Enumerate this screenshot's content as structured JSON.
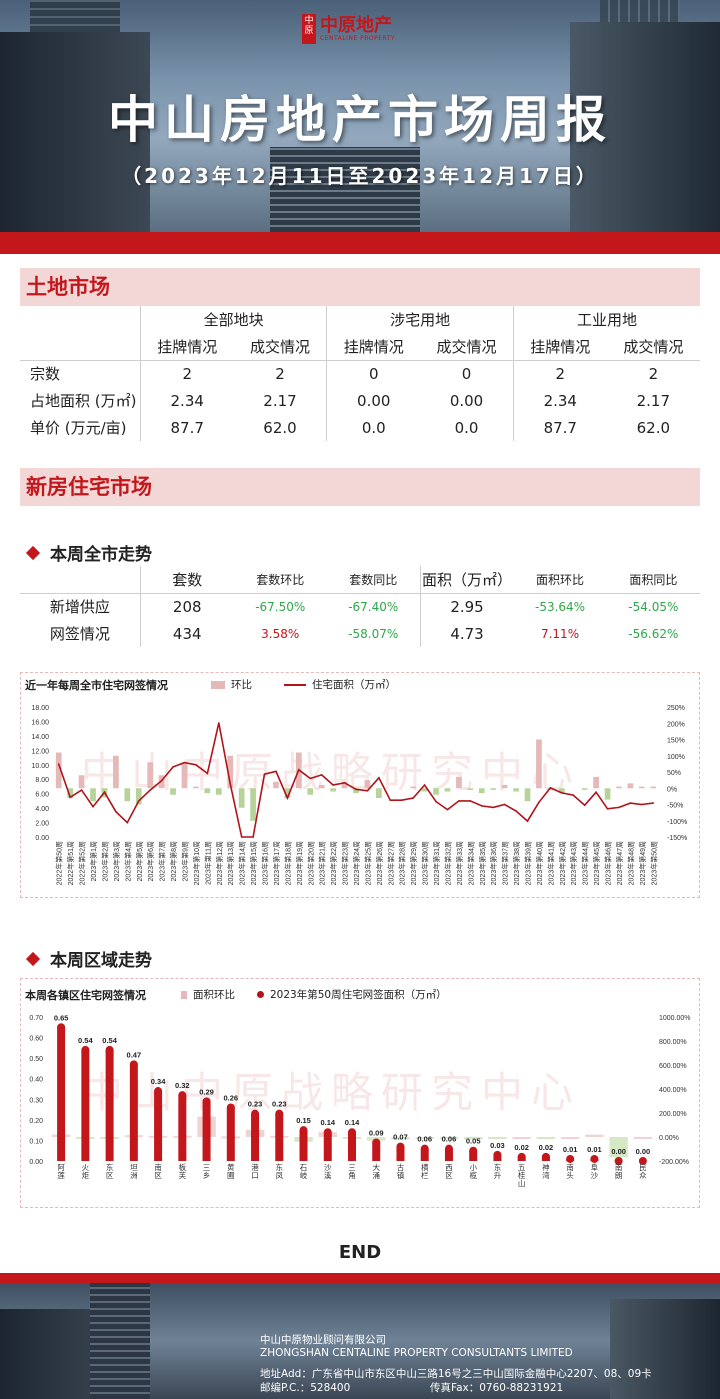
{
  "header": {
    "logo_mark": "中原",
    "logo_text": "中原地产",
    "logo_en": "CENTALINE PROPERTY",
    "title": "中山房地产市场周报",
    "date_range": "（2023年12月11日至2023年12月17日）"
  },
  "land": {
    "section_title": "土地市场",
    "groups": [
      "全部地块",
      "涉宅用地",
      "工业用地"
    ],
    "subheads": [
      "挂牌情况",
      "成交情况",
      "挂牌情况",
      "成交情况",
      "挂牌情况",
      "成交情况"
    ],
    "rows": [
      {
        "label": "宗数",
        "values": [
          "2",
          "2",
          "0",
          "0",
          "2",
          "2"
        ]
      },
      {
        "label": "占地面积 (万㎡)",
        "values": [
          "2.34",
          "2.17",
          "0.00",
          "0.00",
          "2.34",
          "2.17"
        ]
      },
      {
        "label": "单价 (万元/亩)",
        "values": [
          "87.7",
          "62.0",
          "0.0",
          "0.0",
          "87.7",
          "62.0"
        ]
      }
    ]
  },
  "newhouse": {
    "section_title": "新房住宅市场",
    "sub1": "本周全市走势",
    "headers": [
      "套数",
      "套数环比",
      "套数同比",
      "面积（万㎡）",
      "面积环比",
      "面积同比"
    ],
    "rows": [
      {
        "label": "新增供应",
        "values": [
          "208",
          "-67.50%",
          "-67.40%",
          "2.95",
          "-53.64%",
          "-54.05%"
        ]
      },
      {
        "label": "网签情况",
        "values": [
          "434",
          "3.58%",
          "-58.07%",
          "4.73",
          "7.11%",
          "-56.62%"
        ]
      }
    ],
    "sub2": "本周区域走势",
    "end": "END"
  },
  "colors": {
    "accent": "#c3171c",
    "bar_light": "#e6b9b9",
    "negative": "#2fa84a",
    "line": "#b0141a"
  },
  "watermark": "中山中原战略研究中心",
  "chart_data": [
    {
      "type": "bar",
      "title": "近一年每周全市住宅网签情况",
      "series_names": [
        "环比",
        "住宅面积（万㎡）"
      ],
      "categories": [
        "2022年第50周",
        "2022年第51周",
        "2022年第52周",
        "2023年第1周",
        "2023年第2周",
        "2023年第3周",
        "2023年第4周",
        "2023年第5周",
        "2023年第6周",
        "2023年第7周",
        "2023年第8周",
        "2023年第9周",
        "2023年第10周",
        "2023年第11周",
        "2023年第12周",
        "2023年第13周",
        "2023年第14周",
        "2023年第15周",
        "2023年第16周",
        "2023年第17周",
        "2023年第18周",
        "2023年第19周",
        "2023年第20周",
        "2023年第21周",
        "2023年第22周",
        "2023年第23周",
        "2023年第24周",
        "2023年第25周",
        "2023年第26周",
        "2023年第27周",
        "2023年第28周",
        "2023年第29周",
        "2023年第30周",
        "2023年第31周",
        "2023年第32周",
        "2023年第33周",
        "2023年第34周",
        "2023年第35周",
        "2023年第36周",
        "2023年第37周",
        "2023年第38周",
        "2023年第39周",
        "2023年第40周",
        "2023年第41周",
        "2023年第42周",
        "2023年第43周",
        "2023年第44周",
        "2023年第45周",
        "2023年第46周",
        "2023年第47周",
        "2023年第48周",
        "2023年第49周",
        "2023年第50周"
      ],
      "area": [
        10.1,
        5.5,
        6.5,
        4.2,
        6.2,
        3.5,
        2.0,
        5.0,
        6.5,
        7.8,
        9.7,
        10.3,
        10.0,
        8.8,
        15.8,
        7.4,
        0,
        0,
        8.7,
        9.1,
        5.4,
        9.3,
        8.1,
        8.6,
        7.2,
        7.5,
        6.6,
        6.4,
        8.2,
        5.1,
        5.1,
        5.4,
        7.2,
        4.9,
        3.8,
        5.0,
        5.0,
        4.3,
        4.1,
        4.5,
        3.6,
        2.2,
        4.8,
        6.8,
        6.1,
        5.8,
        4.4,
        6.2,
        3.9,
        4.1,
        4.7,
        4.5,
        4.7
      ],
      "wow": [
        110,
        -30,
        40,
        -40,
        -28,
        100,
        -40,
        -50,
        80,
        40,
        -20,
        80,
        5,
        -15,
        -20,
        100,
        -60,
        -100,
        0,
        20,
        -30,
        110,
        -20,
        10,
        -10,
        20,
        -15,
        25,
        -30,
        0,
        0,
        5,
        -10,
        -20,
        -10,
        35,
        -5,
        -15,
        -5,
        10,
        -10,
        -40,
        150,
        -5,
        -15,
        0,
        -5,
        35,
        -35,
        5,
        15,
        5,
        5
      ],
      "y_left": [
        0,
        18
      ],
      "y_right": [
        -150,
        250
      ],
      "ticks_left": [
        "18.00",
        "16.00",
        "14.00",
        "12.00",
        "10.00",
        "8.00",
        "6.00",
        "4.00",
        "2.00",
        "0.00"
      ],
      "ticks_right": [
        "250%",
        "200%",
        "150%",
        "100%",
        "50%",
        "0%",
        "-50%",
        "-100%",
        "-150%"
      ]
    },
    {
      "type": "bar",
      "title": "本周各镇区住宅网签情况",
      "series_names": [
        "面积环比",
        "2023年第50周住宅网签面积（万㎡）"
      ],
      "categories": [
        "阿莲",
        "火炬",
        "东区",
        "坦洲",
        "南区",
        "板芙",
        "三乡",
        "黄圃",
        "港口",
        "东凤",
        "石岐",
        "沙溪",
        "三角",
        "大涌",
        "古镇",
        "横栏",
        "西区",
        "小榄",
        "东升",
        "五桂山",
        "神湾",
        "南头",
        "阜沙",
        "南朗",
        "民众"
      ],
      "values": [
        0.65,
        0.54,
        0.54,
        0.47,
        0.34,
        0.32,
        0.29,
        0.26,
        0.23,
        0.23,
        0.15,
        0.14,
        0.14,
        0.09,
        0.07,
        0.06,
        0.06,
        0.05,
        0.03,
        0.02,
        0.02,
        0.01,
        0.01,
        0.0,
        0.0
      ],
      "labels": [
        "0.65",
        "0.54",
        "0.54",
        "0.47",
        "0.34",
        "0.32",
        "0.29",
        "0.26",
        "0.23",
        "0.23",
        "0.15",
        "0.14",
        "0.14",
        "0.09",
        "0.07",
        "0.06",
        "0.06",
        "0.05",
        "0.03",
        "0.02",
        "0.02",
        "0.01",
        "0.01",
        "0.00",
        "0.00"
      ],
      "wow": [
        20,
        -5,
        -10,
        15,
        10,
        10,
        170,
        5,
        60,
        10,
        -40,
        40,
        -10,
        -30,
        -20,
        -15,
        -20,
        -20,
        -5,
        0,
        -5,
        0,
        20,
        -170,
        0
      ],
      "y_left": [
        0,
        0.7
      ],
      "y_right": [
        -200,
        1000
      ],
      "ticks_left": [
        "0.70",
        "0.60",
        "0.50",
        "0.40",
        "0.30",
        "0.20",
        "0.10",
        "0.00"
      ],
      "ticks_right": [
        "1000.00%",
        "800.00%",
        "600.00%",
        "400.00%",
        "200.00%",
        "0.00%",
        "-200.00%"
      ]
    }
  ],
  "footer": {
    "company_cn": "中山中原物业顾问有限公司",
    "company_en": "ZHONGSHAN CENTALINE PROPERTY CONSULTANTS LIMITED",
    "address": "地址Add：广东省中山市东区中山三路16号之三中山国际金融中心2207、08、09卡",
    "postcode": "邮编P.C.：528400",
    "fax": "传真Fax：0760-88231921"
  }
}
